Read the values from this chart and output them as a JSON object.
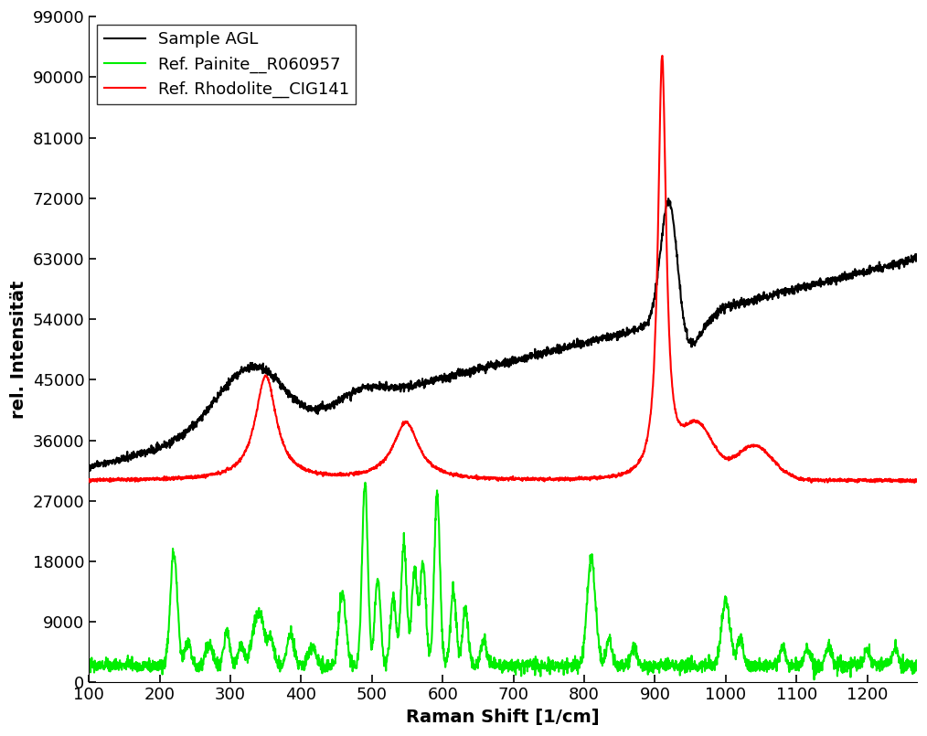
{
  "title": "",
  "xlabel": "Raman Shift [1/cm]",
  "ylabel": "rel. Intensität",
  "xlim": [
    100,
    1270
  ],
  "ylim": [
    0,
    99000
  ],
  "yticks": [
    0,
    9000,
    18000,
    27000,
    36000,
    45000,
    54000,
    63000,
    72000,
    81000,
    90000,
    99000
  ],
  "xticks": [
    100,
    200,
    300,
    400,
    500,
    600,
    700,
    800,
    900,
    1000,
    1100,
    1200
  ],
  "legend_labels": [
    "Sample AGL",
    "Ref. Painite__R060957",
    "Ref. Rhodolite__CIG141"
  ],
  "colors": {
    "black": "#000000",
    "green": "#00EE00",
    "red": "#FF0000"
  },
  "line_width": 1.5,
  "font_size_axis": 14,
  "font_size_ticks": 13,
  "font_size_legend": 13,
  "background_color": "#ffffff"
}
